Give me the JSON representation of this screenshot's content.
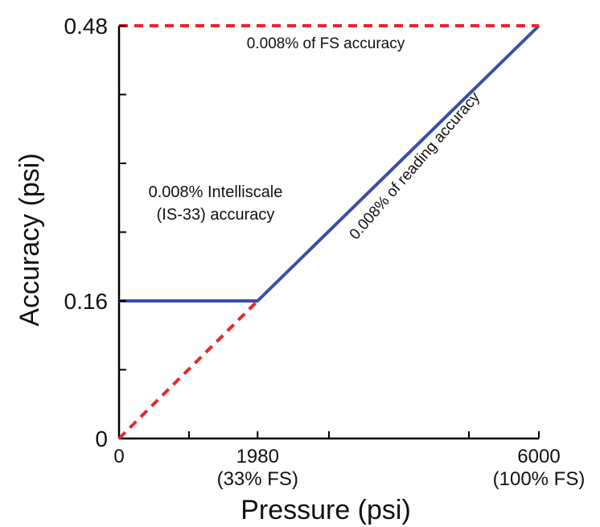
{
  "chart_data": {
    "type": "line",
    "xlabel": "Pressure (psi)",
    "ylabel": "Accuracy (psi)",
    "xlim": [
      0,
      6000
    ],
    "ylim": [
      0,
      0.48
    ],
    "x_tick_values": [
      0,
      1000,
      1980,
      3000,
      5000,
      6000
    ],
    "x_tick_labels": [
      {
        "value": 0,
        "line1": "0",
        "line2": ""
      },
      {
        "value": 1980,
        "line1": "1980",
        "line2": "(33% FS)"
      },
      {
        "value": 6000,
        "line1": "6000",
        "line2": "(100% FS)"
      }
    ],
    "y_tick_values": [
      0,
      0.08,
      0.16,
      0.24,
      0.32,
      0.4,
      0.48
    ],
    "y_tick_labels": [
      {
        "value": 0,
        "text": "0"
      },
      {
        "value": 0.16,
        "text": "0.16"
      },
      {
        "value": 0.48,
        "text": "0.48"
      }
    ],
    "series": [
      {
        "style": "solid",
        "color": "#3a4fa8",
        "x": [
          0,
          1980,
          6000
        ],
        "y": [
          0.16,
          0.16,
          0.48
        ]
      },
      {
        "style": "dashed",
        "color": "#e8262b",
        "x": [
          0,
          6000
        ],
        "y": [
          0.48,
          0.48
        ]
      },
      {
        "style": "dashed",
        "color": "#e8262b",
        "x": [
          0,
          1980
        ],
        "y": [
          0,
          0.16
        ]
      }
    ],
    "annotations": {
      "fs": "0.008% of FS accuracy",
      "intelliscale_1": "0.008% Intelliscale",
      "intelliscale_2": "(IS-33) accuracy",
      "reading": "0.008% of reading accuracy"
    },
    "grid": false,
    "legend": "none"
  }
}
